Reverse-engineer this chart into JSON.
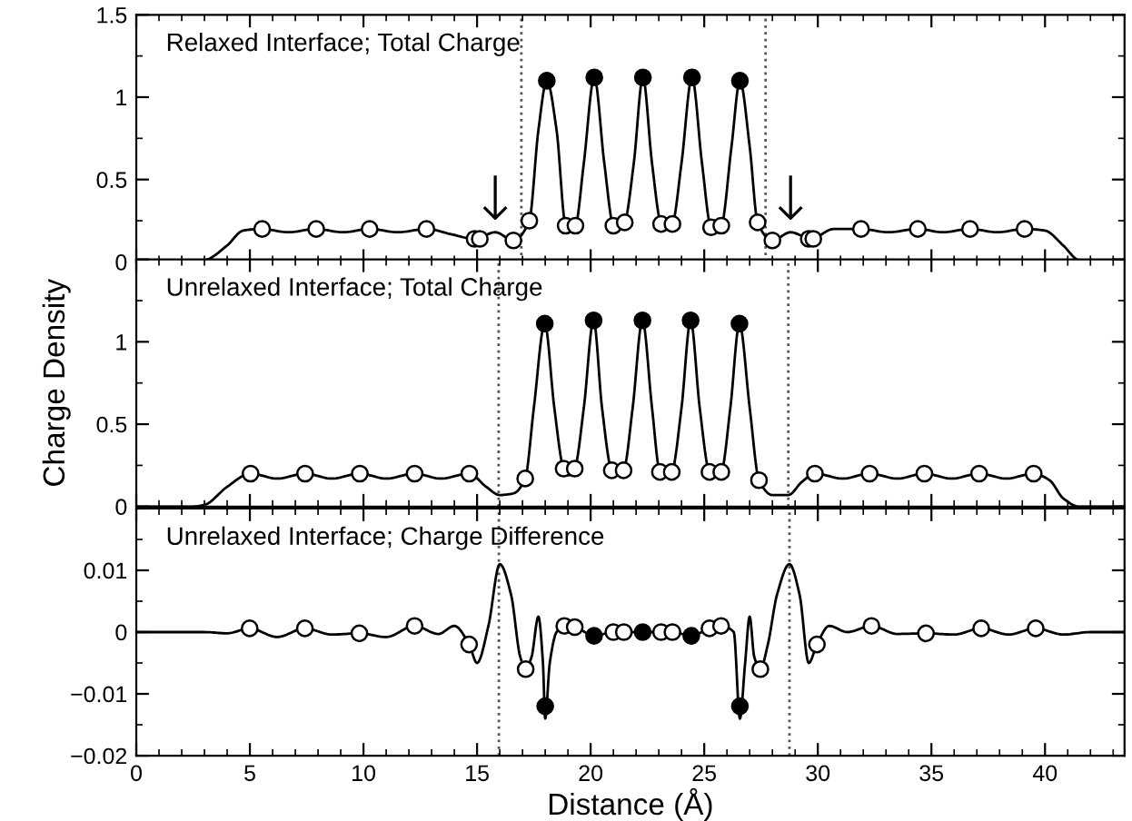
{
  "chart_data": [
    {
      "type": "line",
      "annotations": [
        "Relaxed Interface; Total Charge",
        {
          "text": "↓",
          "x": 15.8,
          "y": 0.18
        },
        {
          "text": "↓",
          "x": 28.8,
          "y": 0.18
        }
      ],
      "xlim": [
        0,
        43.5
      ],
      "xticks": [
        0,
        5,
        10,
        15,
        20,
        25,
        30,
        35,
        40
      ],
      "ylim": [
        0,
        1.5
      ],
      "yticks": [
        0,
        0.5,
        1,
        1.5
      ],
      "tick_labels": "y",
      "grid": false,
      "legend": false,
      "ref_lines": [
        {
          "axis": "x",
          "value": 16.95,
          "line_style": "dotted",
          "color": "#555555"
        },
        {
          "axis": "x",
          "value": 27.7,
          "line_style": "dotted",
          "color": "#555555"
        }
      ],
      "series": [
        {
          "type": "line",
          "color": "#000000",
          "marker": "none",
          "x": [
            0,
            2,
            3,
            4,
            4.7,
            5.5,
            6.7,
            7.9,
            9.1,
            10.3,
            11.5,
            12.8,
            13.8,
            14.9,
            15.8,
            16.6,
            17.3,
            17.7,
            18.07,
            18.5,
            18.9,
            19.1,
            19.33,
            19.7,
            20.16,
            20.6,
            21.0,
            21.25,
            21.5,
            21.9,
            22.3,
            22.7,
            23.1,
            23.35,
            23.6,
            24.0,
            24.46,
            24.9,
            25.3,
            25.5,
            25.75,
            26.2,
            26.57,
            27.0,
            27.35,
            28.0,
            28.8,
            29.7,
            30.7,
            31.9,
            33.1,
            34.4,
            35.5,
            36.7,
            37.9,
            39.1,
            40.0,
            40.8,
            41.5,
            42.5,
            43.5
          ],
          "values": [
            0,
            0,
            0.01,
            0.1,
            0.19,
            0.2,
            0.18,
            0.2,
            0.18,
            0.2,
            0.18,
            0.2,
            0.17,
            0.14,
            0.18,
            0.13,
            0.25,
            0.8,
            1.1,
            0.8,
            0.22,
            0.2,
            0.22,
            0.6,
            1.12,
            0.6,
            0.22,
            0.2,
            0.24,
            0.6,
            1.12,
            0.6,
            0.23,
            0.2,
            0.23,
            0.6,
            1.12,
            0.6,
            0.21,
            0.2,
            0.22,
            0.7,
            1.1,
            0.7,
            0.24,
            0.13,
            0.18,
            0.14,
            0.2,
            0.2,
            0.18,
            0.2,
            0.18,
            0.2,
            0.18,
            0.2,
            0.19,
            0.1,
            0.01,
            0,
            0
          ]
        },
        {
          "type": "scatter",
          "color": "#ffffff",
          "marker": "circle",
          "x": [
            5.54,
            7.92,
            10.27,
            12.77,
            14.89,
            15.12,
            16.6,
            17.3,
            18.9,
            19.33,
            21.0,
            21.5,
            23.1,
            23.6,
            25.3,
            25.75,
            27.35,
            28.0,
            29.6,
            29.8,
            31.9,
            34.4,
            36.7,
            39.1
          ],
          "values": [
            0.2,
            0.2,
            0.2,
            0.2,
            0.14,
            0.14,
            0.13,
            0.25,
            0.22,
            0.22,
            0.22,
            0.24,
            0.23,
            0.23,
            0.21,
            0.22,
            0.24,
            0.13,
            0.14,
            0.14,
            0.2,
            0.2,
            0.2,
            0.2
          ]
        },
        {
          "type": "scatter",
          "color": "#000000",
          "marker": "circle",
          "x": [
            18.07,
            20.16,
            22.3,
            24.46,
            26.57
          ],
          "values": [
            1.1,
            1.12,
            1.12,
            1.12,
            1.1
          ]
        }
      ]
    },
    {
      "type": "line",
      "ylabel": "Charge Density",
      "annotations": [
        "Unrelaxed Interface; Total Charge"
      ],
      "xlim": [
        0,
        43.5
      ],
      "xticks": [
        0,
        5,
        10,
        15,
        20,
        25,
        30,
        35,
        40
      ],
      "ylim": [
        0,
        1.5
      ],
      "yticks": [
        0,
        0.5,
        1,
        {
          "value": 1.5,
          "label": null
        }
      ],
      "tick_labels": "y",
      "grid": false,
      "legend": false,
      "ref_lines": [
        {
          "axis": "x",
          "value": 15.95,
          "line_style": "dotted",
          "color": "#555555"
        },
        {
          "axis": "x",
          "value": 28.7,
          "line_style": "dotted",
          "color": "#555555"
        }
      ],
      "series": [
        {
          "type": "line",
          "color": "#000000",
          "marker": "none",
          "x": [
            0,
            2.5,
            3,
            4,
            5.03,
            6.2,
            7.43,
            8.6,
            9.84,
            11,
            12.25,
            13.4,
            14.66,
            15.4,
            16.0,
            16.6,
            17.12,
            17.5,
            17.98,
            18.4,
            18.81,
            19.05,
            19.3,
            19.7,
            20.13,
            20.5,
            20.93,
            21.2,
            21.45,
            21.85,
            22.28,
            22.7,
            23.05,
            23.3,
            23.57,
            24.0,
            24.4,
            24.8,
            25.23,
            25.5,
            25.75,
            26.15,
            26.55,
            27.0,
            27.41,
            28.0,
            28.7,
            29.3,
            29.87,
            31.1,
            32.28,
            33.5,
            34.69,
            35.9,
            37.1,
            38.3,
            39.5,
            40.2,
            40.8,
            41.5,
            43.5
          ],
          "values": [
            0,
            0,
            0.01,
            0.12,
            0.2,
            0.17,
            0.2,
            0.17,
            0.2,
            0.17,
            0.2,
            0.17,
            0.2,
            0.12,
            0.07,
            0.08,
            0.17,
            0.6,
            1.11,
            0.6,
            0.23,
            0.19,
            0.23,
            0.6,
            1.13,
            0.6,
            0.22,
            0.2,
            0.22,
            0.6,
            1.13,
            0.6,
            0.21,
            0.19,
            0.21,
            0.6,
            1.13,
            0.6,
            0.21,
            0.19,
            0.21,
            0.6,
            1.11,
            0.6,
            0.16,
            0.07,
            0.07,
            0.15,
            0.2,
            0.17,
            0.2,
            0.17,
            0.2,
            0.17,
            0.2,
            0.17,
            0.2,
            0.16,
            0.05,
            0,
            0
          ]
        },
        {
          "type": "scatter",
          "color": "#ffffff",
          "marker": "circle",
          "x": [
            5.03,
            7.43,
            9.84,
            12.25,
            14.66,
            17.12,
            18.81,
            19.3,
            20.93,
            21.45,
            23.05,
            23.57,
            25.23,
            25.75,
            27.41,
            29.87,
            32.28,
            34.69,
            37.1,
            39.5
          ],
          "values": [
            0.2,
            0.2,
            0.2,
            0.2,
            0.2,
            0.17,
            0.23,
            0.23,
            0.22,
            0.22,
            0.21,
            0.21,
            0.21,
            0.21,
            0.16,
            0.2,
            0.2,
            0.2,
            0.2,
            0.2
          ]
        },
        {
          "type": "scatter",
          "color": "#000000",
          "marker": "circle",
          "x": [
            17.98,
            20.13,
            22.28,
            24.4,
            26.55
          ],
          "values": [
            1.11,
            1.13,
            1.13,
            1.13,
            1.11
          ]
        }
      ]
    },
    {
      "type": "line",
      "xlabel": "Distance (Å)",
      "annotations": [
        "Unrelaxed Interface; Charge Difference"
      ],
      "xlim": [
        0,
        43.5
      ],
      "xticks": [
        0,
        5,
        10,
        15,
        20,
        25,
        30,
        35,
        40
      ],
      "ylim": [
        -0.02,
        0.02
      ],
      "yticks": [
        {
          "value": -0.02,
          "label": "−0.02"
        },
        {
          "value": -0.01,
          "label": "−0.01"
        },
        0,
        0.01,
        {
          "value": 0.02,
          "label": null
        }
      ],
      "grid": false,
      "legend": false,
      "ref_lines": [
        {
          "axis": "x",
          "value": 15.96,
          "line_style": "dotted",
          "color": "#555555"
        },
        {
          "axis": "x",
          "value": 28.75,
          "line_style": "dotted",
          "color": "#555555"
        }
      ],
      "series": [
        {
          "type": "line",
          "color": "#000000",
          "marker": "none",
          "x": [
            0,
            3,
            4,
            4.99,
            6.2,
            7.42,
            8.6,
            9.82,
            11.0,
            12.25,
            13.3,
            14.0,
            14.65,
            15.0,
            15.5,
            16.0,
            16.5,
            16.9,
            17.14,
            17.4,
            17.7,
            17.9,
            18.0,
            18.2,
            18.5,
            18.84,
            19.3,
            20.15,
            21.0,
            21.46,
            22.29,
            23.1,
            23.6,
            24.43,
            25.23,
            25.74,
            26.3,
            26.57,
            26.8,
            27.0,
            27.2,
            27.47,
            27.8,
            28.2,
            28.75,
            29.2,
            29.6,
            29.96,
            30.5,
            31.3,
            32.36,
            33.5,
            34.76,
            36,
            37.19,
            38.4,
            39.59,
            40.8,
            42,
            43.5
          ],
          "values": [
            0,
            0,
            -0.0002,
            0.0006,
            -0.0008,
            0.0006,
            -0.0004,
            -0.0002,
            -0.0008,
            0.001,
            -0.0003,
            0.001,
            -0.002,
            -0.005,
            0.001,
            0.011,
            0.006,
            -0.004,
            -0.006,
            -0.004,
            0.0025,
            -0.005,
            -0.014,
            -0.005,
            0,
            0.001,
            0.0008,
            -0.0006,
            0,
            0,
            0,
            0,
            0,
            -0.0006,
            0.0006,
            0.001,
            0,
            -0.014,
            -0.005,
            0.0025,
            -0.004,
            -0.006,
            -0.002,
            0.006,
            0.011,
            0.006,
            -0.005,
            -0.002,
            0.001,
            0,
            0.001,
            -0.0003,
            -0.0002,
            -0.0004,
            0.0006,
            -0.0004,
            0.0006,
            -0.0004,
            0,
            0
          ]
        },
        {
          "type": "scatter",
          "color": "#ffffff",
          "marker": "circle",
          "x": [
            4.99,
            7.42,
            9.82,
            12.25,
            14.65,
            17.14,
            18.84,
            19.3,
            21.0,
            21.46,
            23.1,
            23.6,
            25.23,
            25.74,
            27.47,
            29.96,
            32.36,
            34.76,
            37.19,
            39.59
          ],
          "values": [
            0.0006,
            0.0006,
            -0.0002,
            0.001,
            -0.002,
            -0.006,
            0.001,
            0.0008,
            0,
            0,
            0,
            0,
            0.0006,
            0.001,
            -0.006,
            -0.002,
            0.001,
            -0.0002,
            0.0006,
            0.0006
          ]
        },
        {
          "type": "scatter",
          "color": "#000000",
          "marker": "circle",
          "x": [
            18.0,
            20.15,
            22.29,
            24.43,
            26.57
          ],
          "values": [
            -0.012,
            -0.0006,
            0,
            -0.0006,
            -0.012
          ]
        }
      ]
    }
  ]
}
